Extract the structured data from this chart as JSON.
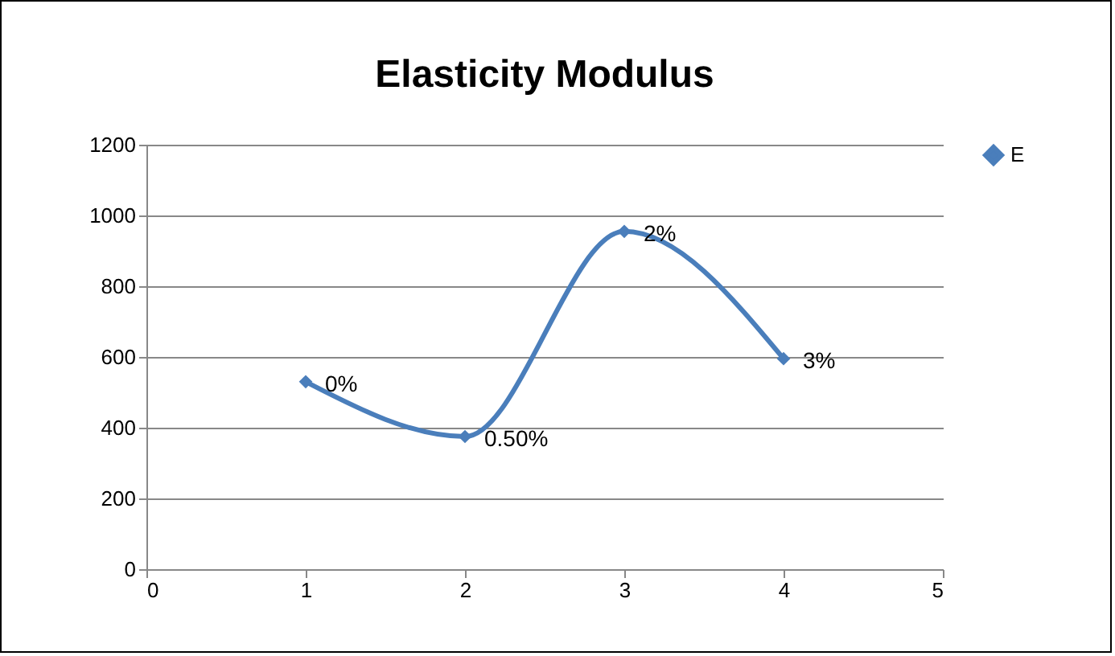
{
  "chart_data": {
    "type": "line",
    "title": "Elasticity Modulus",
    "x": [
      1,
      2,
      3,
      4
    ],
    "series": [
      {
        "name": "E",
        "color": "#4a7ebb",
        "values": [
          530,
          375,
          955,
          595
        ]
      }
    ],
    "xlim": [
      0,
      5
    ],
    "xticks": [
      0,
      1,
      2,
      3,
      4,
      5
    ],
    "ylim": [
      0,
      1200
    ],
    "yticks": [
      0,
      200,
      400,
      600,
      800,
      1000,
      1200
    ],
    "grid": "y",
    "legend": "right",
    "marker": "diamond",
    "annotations": [
      {
        "text": "0%",
        "x": 1,
        "y": 530
      },
      {
        "text": "0.50%",
        "x": 2,
        "y": 375
      },
      {
        "text": "2%",
        "x": 3,
        "y": 955
      },
      {
        "text": "3%",
        "x": 4,
        "y": 595
      }
    ]
  }
}
